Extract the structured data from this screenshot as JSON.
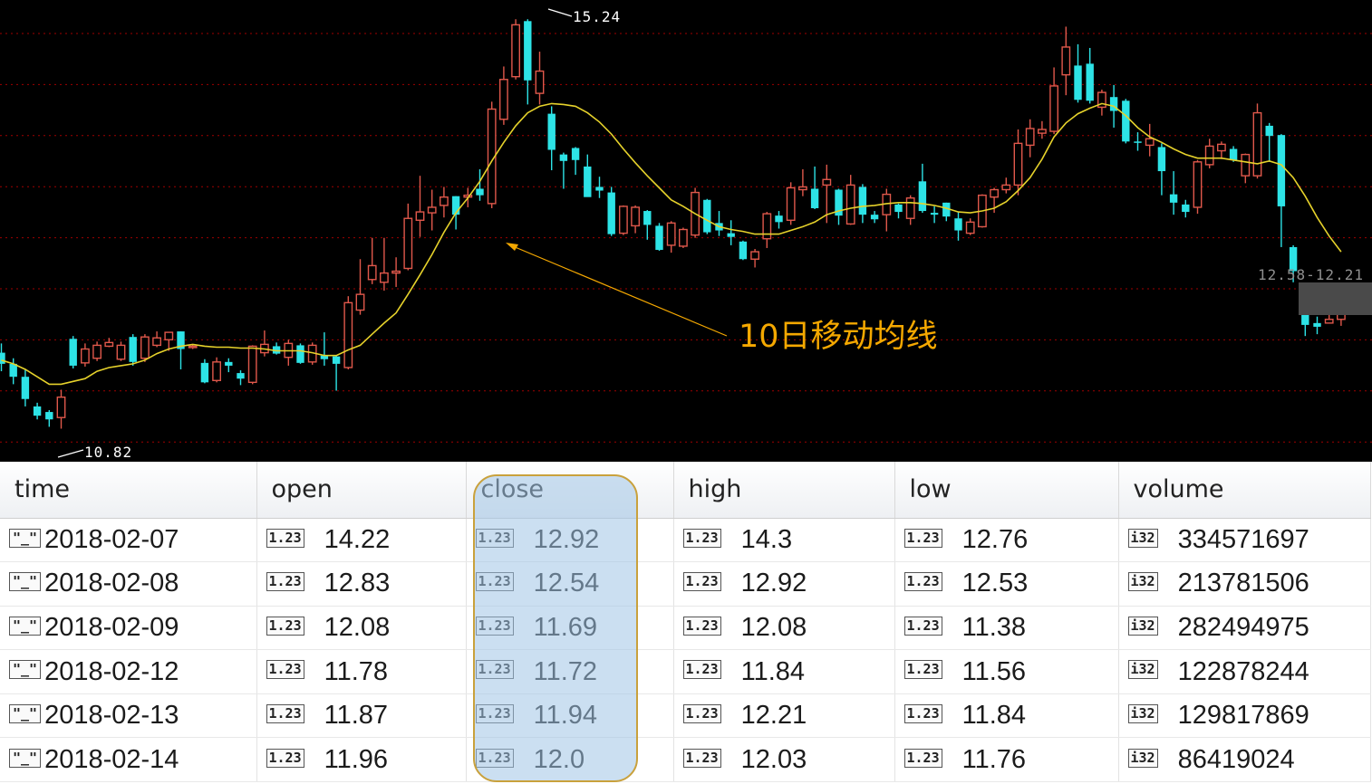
{
  "annotations": {
    "high_label": "15.24",
    "low_label": "10.82",
    "ma_label": "10日移动均线",
    "range_label": "12.58-12.21"
  },
  "colors": {
    "up": "#e0584b",
    "down": "#2de3e6",
    "ma": "#e6d22b",
    "grid": "#a00000",
    "annotation": "#f5a800",
    "highlight_border": "#c9a13c"
  },
  "chart_data": {
    "type": "candlestick",
    "ylim": [
      10.6,
      15.35
    ],
    "ma_period": 10,
    "candles": [
      {
        "o": 11.64,
        "c": 11.52,
        "h": 11.74,
        "l": 11.44
      },
      {
        "o": 11.52,
        "c": 11.38,
        "h": 11.58,
        "l": 11.3
      },
      {
        "o": 11.38,
        "c": 11.14,
        "h": 11.46,
        "l": 11.06
      },
      {
        "o": 11.06,
        "c": 10.96,
        "h": 11.1,
        "l": 10.92
      },
      {
        "o": 11.0,
        "c": 10.92,
        "h": 11.02,
        "l": 10.84
      },
      {
        "o": 10.94,
        "c": 11.16,
        "h": 11.24,
        "l": 10.82
      },
      {
        "o": 11.79,
        "c": 11.5,
        "h": 11.82,
        "l": 11.47
      },
      {
        "o": 11.53,
        "c": 11.68,
        "h": 11.74,
        "l": 11.49
      },
      {
        "o": 11.58,
        "c": 11.72,
        "h": 11.76,
        "l": 11.55
      },
      {
        "o": 11.71,
        "c": 11.75,
        "h": 11.8,
        "l": 11.7
      },
      {
        "o": 11.57,
        "c": 11.72,
        "h": 11.76,
        "l": 11.55
      },
      {
        "o": 11.81,
        "c": 11.54,
        "h": 11.84,
        "l": 11.5
      },
      {
        "o": 11.58,
        "c": 11.81,
        "h": 11.84,
        "l": 11.54
      },
      {
        "o": 11.72,
        "c": 11.8,
        "h": 11.87,
        "l": 11.7
      },
      {
        "o": 11.78,
        "c": 11.86,
        "h": 11.86,
        "l": 11.66
      },
      {
        "o": 11.87,
        "c": 11.68,
        "h": 11.87,
        "l": 11.46
      },
      {
        "o": 11.7,
        "c": 11.71,
        "h": 11.73,
        "l": 11.68
      },
      {
        "o": 11.53,
        "c": 11.32,
        "h": 11.57,
        "l": 11.31
      },
      {
        "o": 11.34,
        "c": 11.54,
        "h": 11.59,
        "l": 11.32
      },
      {
        "o": 11.54,
        "c": 11.5,
        "h": 11.58,
        "l": 11.43
      },
      {
        "o": 11.42,
        "c": 11.36,
        "h": 11.45,
        "l": 11.29
      },
      {
        "o": 11.32,
        "c": 11.71,
        "h": 11.72,
        "l": 11.3
      },
      {
        "o": 11.64,
        "c": 11.73,
        "h": 11.88,
        "l": 11.6
      },
      {
        "o": 11.71,
        "c": 11.63,
        "h": 11.75,
        "l": 11.62
      },
      {
        "o": 11.59,
        "c": 11.74,
        "h": 11.78,
        "l": 11.5
      },
      {
        "o": 11.72,
        "c": 11.53,
        "h": 11.74,
        "l": 11.52
      },
      {
        "o": 11.54,
        "c": 11.72,
        "h": 11.75,
        "l": 11.51
      },
      {
        "o": 11.61,
        "c": 11.57,
        "h": 11.86,
        "l": 11.5
      },
      {
        "o": 11.6,
        "c": 11.52,
        "h": 11.61,
        "l": 11.23
      },
      {
        "o": 11.48,
        "c": 12.18,
        "h": 12.25,
        "l": 11.46
      },
      {
        "o": 12.1,
        "c": 12.27,
        "h": 12.65,
        "l": 12.05
      },
      {
        "o": 12.43,
        "c": 12.58,
        "h": 12.88,
        "l": 12.38
      },
      {
        "o": 12.4,
        "c": 12.5,
        "h": 12.88,
        "l": 12.31
      },
      {
        "o": 12.5,
        "c": 12.52,
        "h": 12.67,
        "l": 12.35
      },
      {
        "o": 12.55,
        "c": 13.09,
        "h": 13.25,
        "l": 12.53
      },
      {
        "o": 13.07,
        "c": 13.16,
        "h": 13.55,
        "l": 12.89
      },
      {
        "o": 13.15,
        "c": 13.21,
        "h": 13.4,
        "l": 12.96
      },
      {
        "o": 13.23,
        "c": 13.32,
        "h": 13.43,
        "l": 13.1
      },
      {
        "o": 13.33,
        "c": 13.13,
        "h": 13.33,
        "l": 12.97
      },
      {
        "o": 13.32,
        "c": 13.34,
        "h": 13.42,
        "l": 13.21
      },
      {
        "o": 13.41,
        "c": 13.34,
        "h": 13.62,
        "l": 13.28
      },
      {
        "o": 13.25,
        "c": 14.27,
        "h": 14.35,
        "l": 13.2
      },
      {
        "o": 14.16,
        "c": 14.59,
        "h": 14.73,
        "l": 14.1
      },
      {
        "o": 14.62,
        "c": 15.18,
        "h": 15.24,
        "l": 14.59
      },
      {
        "o": 15.22,
        "c": 14.58,
        "h": 15.24,
        "l": 14.32
      },
      {
        "o": 14.44,
        "c": 14.68,
        "h": 14.89,
        "l": 14.32
      },
      {
        "o": 14.22,
        "c": 13.83,
        "h": 14.3,
        "l": 13.61
      },
      {
        "o": 13.78,
        "c": 13.71,
        "h": 13.8,
        "l": 13.41
      },
      {
        "o": 13.85,
        "c": 13.72,
        "h": 13.86,
        "l": 13.56
      },
      {
        "o": 13.65,
        "c": 13.32,
        "h": 13.78,
        "l": 13.33
      },
      {
        "o": 13.43,
        "c": 13.39,
        "h": 13.54,
        "l": 13.31
      },
      {
        "o": 13.37,
        "c": 12.92,
        "h": 13.43,
        "l": 12.9
      },
      {
        "o": 12.93,
        "c": 13.22,
        "h": 13.23,
        "l": 12.91
      },
      {
        "o": 13.01,
        "c": 13.21,
        "h": 13.23,
        "l": 12.93
      },
      {
        "o": 13.17,
        "c": 13.02,
        "h": 13.18,
        "l": 12.86
      },
      {
        "o": 13.01,
        "c": 12.75,
        "h": 13.04,
        "l": 12.74
      },
      {
        "o": 12.8,
        "c": 13.04,
        "h": 13.06,
        "l": 12.72
      },
      {
        "o": 12.79,
        "c": 12.97,
        "h": 12.99,
        "l": 12.77
      },
      {
        "o": 12.91,
        "c": 13.37,
        "h": 13.42,
        "l": 12.88
      },
      {
        "o": 13.29,
        "c": 12.94,
        "h": 13.3,
        "l": 12.92
      },
      {
        "o": 13.04,
        "c": 12.96,
        "h": 13.17,
        "l": 12.9
      },
      {
        "o": 12.93,
        "c": 12.89,
        "h": 13.07,
        "l": 12.8
      },
      {
        "o": 12.84,
        "c": 12.65,
        "h": 12.85,
        "l": 12.64
      },
      {
        "o": 12.65,
        "c": 12.73,
        "h": 12.76,
        "l": 12.56
      },
      {
        "o": 12.87,
        "c": 13.14,
        "h": 13.16,
        "l": 12.77
      },
      {
        "o": 13.12,
        "c": 13.05,
        "h": 13.17,
        "l": 12.98
      },
      {
        "o": 13.07,
        "c": 13.42,
        "h": 13.48,
        "l": 13.02
      },
      {
        "o": 13.4,
        "c": 13.43,
        "h": 13.62,
        "l": 13.33
      },
      {
        "o": 13.41,
        "c": 13.2,
        "h": 13.65,
        "l": 13.19
      },
      {
        "o": 13.45,
        "c": 13.51,
        "h": 13.67,
        "l": 13.04
      },
      {
        "o": 13.4,
        "c": 13.12,
        "h": 13.41,
        "l": 13.02
      },
      {
        "o": 13.03,
        "c": 13.45,
        "h": 13.56,
        "l": 13.02
      },
      {
        "o": 13.43,
        "c": 13.13,
        "h": 13.46,
        "l": 13.04
      },
      {
        "o": 13.13,
        "c": 13.08,
        "h": 13.17,
        "l": 13.04
      },
      {
        "o": 13.13,
        "c": 13.35,
        "h": 13.41,
        "l": 12.95
      },
      {
        "o": 13.24,
        "c": 13.16,
        "h": 13.25,
        "l": 13.09
      },
      {
        "o": 13.09,
        "c": 13.31,
        "h": 13.34,
        "l": 13.02
      },
      {
        "o": 13.49,
        "c": 13.17,
        "h": 13.68,
        "l": 13.15
      },
      {
        "o": 13.15,
        "c": 13.13,
        "h": 13.22,
        "l": 13.04
      },
      {
        "o": 13.26,
        "c": 13.11,
        "h": 13.26,
        "l": 13.06
      },
      {
        "o": 13.09,
        "c": 12.96,
        "h": 13.16,
        "l": 12.85
      },
      {
        "o": 12.93,
        "c": 13.05,
        "h": 13.09,
        "l": 12.91
      },
      {
        "o": 13.0,
        "c": 13.34,
        "h": 13.35,
        "l": 12.99
      },
      {
        "o": 13.32,
        "c": 13.4,
        "h": 13.42,
        "l": 13.15
      },
      {
        "o": 13.4,
        "c": 13.45,
        "h": 13.53,
        "l": 13.36
      },
      {
        "o": 13.45,
        "c": 13.9,
        "h": 14.05,
        "l": 13.34
      },
      {
        "o": 13.88,
        "c": 14.06,
        "h": 14.16,
        "l": 13.75
      },
      {
        "o": 14.01,
        "c": 14.05,
        "h": 14.14,
        "l": 13.95
      },
      {
        "o": 14.03,
        "c": 14.52,
        "h": 14.72,
        "l": 14.0
      },
      {
        "o": 14.64,
        "c": 14.94,
        "h": 15.16,
        "l": 14.42
      },
      {
        "o": 14.74,
        "c": 14.37,
        "h": 14.97,
        "l": 14.34
      },
      {
        "o": 14.76,
        "c": 14.36,
        "h": 14.93,
        "l": 14.33
      },
      {
        "o": 14.29,
        "c": 14.45,
        "h": 14.48,
        "l": 14.2
      },
      {
        "o": 14.4,
        "c": 14.25,
        "h": 14.53,
        "l": 14.07
      },
      {
        "o": 14.36,
        "c": 13.92,
        "h": 14.38,
        "l": 13.9
      },
      {
        "o": 13.92,
        "c": 13.91,
        "h": 14.02,
        "l": 13.82
      },
      {
        "o": 13.88,
        "c": 13.95,
        "h": 14.11,
        "l": 13.76
      },
      {
        "o": 13.86,
        "c": 13.6,
        "h": 13.9,
        "l": 13.34
      },
      {
        "o": 13.35,
        "c": 13.26,
        "h": 13.6,
        "l": 13.13
      },
      {
        "o": 13.24,
        "c": 13.16,
        "h": 13.29,
        "l": 13.1
      },
      {
        "o": 13.21,
        "c": 13.7,
        "h": 13.72,
        "l": 13.14
      },
      {
        "o": 13.67,
        "c": 13.87,
        "h": 13.95,
        "l": 13.63
      },
      {
        "o": 13.82,
        "c": 13.89,
        "h": 13.92,
        "l": 13.73
      },
      {
        "o": 13.84,
        "c": 13.72,
        "h": 13.87,
        "l": 13.7
      },
      {
        "o": 13.55,
        "c": 13.78,
        "h": 13.79,
        "l": 13.47
      },
      {
        "o": 13.55,
        "c": 14.23,
        "h": 14.33,
        "l": 13.52
      },
      {
        "o": 14.09,
        "c": 13.98,
        "h": 14.12,
        "l": 13.7
      },
      {
        "o": 13.99,
        "c": 13.22,
        "h": 14.0,
        "l": 12.78
      },
      {
        "o": 12.78,
        "c": 12.52,
        "h": 12.8,
        "l": 12.4
      },
      {
        "o": 12.22,
        "c": 11.94,
        "h": 12.24,
        "l": 11.82
      },
      {
        "o": 11.96,
        "c": 11.92,
        "h": 12.03,
        "l": 11.84
      },
      {
        "o": 11.96,
        "c": 12.0,
        "h": 12.23,
        "l": 11.96
      },
      {
        "o": 12.0,
        "c": 12.07,
        "h": 12.08,
        "l": 11.93
      }
    ],
    "ma": [
      11.56,
      11.52,
      11.46,
      11.38,
      11.3,
      11.3,
      11.33,
      11.36,
      11.44,
      11.48,
      11.5,
      11.52,
      11.56,
      11.63,
      11.68,
      11.71,
      11.73,
      11.71,
      11.7,
      11.7,
      11.69,
      11.69,
      11.68,
      11.66,
      11.66,
      11.66,
      11.64,
      11.61,
      11.61,
      11.67,
      11.72,
      11.84,
      11.96,
      12.07,
      12.27,
      12.48,
      12.7,
      12.94,
      13.15,
      13.31,
      13.49,
      13.71,
      13.91,
      14.09,
      14.23,
      14.3,
      14.33,
      14.32,
      14.3,
      14.23,
      14.13,
      14.0,
      13.84,
      13.69,
      13.55,
      13.42,
      13.29,
      13.22,
      13.14,
      13.07,
      13.0,
      12.97,
      12.95,
      12.92,
      12.92,
      12.92,
      12.96,
      13.0,
      13.05,
      13.13,
      13.17,
      13.2,
      13.22,
      13.23,
      13.25,
      13.26,
      13.26,
      13.25,
      13.23,
      13.2,
      13.16,
      13.15,
      13.17,
      13.2,
      13.27,
      13.39,
      13.53,
      13.73,
      13.97,
      14.12,
      14.22,
      14.28,
      14.33,
      14.3,
      14.2,
      14.07,
      13.97,
      13.91,
      13.84,
      13.78,
      13.74,
      13.74,
      13.74,
      13.72,
      13.7,
      13.68,
      13.71,
      13.67,
      13.53,
      13.33,
      13.1,
      12.9,
      12.73
    ]
  },
  "table": {
    "columns": [
      "time",
      "open",
      "close",
      "high",
      "low",
      "volume"
    ],
    "date_tag": "\"_\"",
    "float_tag": "1.23",
    "int_tag": "i32",
    "rows": [
      {
        "time": "2018-02-07",
        "open": "14.22",
        "close": "12.92",
        "high": "14.3",
        "low": "12.76",
        "volume": "334571697"
      },
      {
        "time": "2018-02-08",
        "open": "12.83",
        "close": "12.54",
        "high": "12.92",
        "low": "12.53",
        "volume": "213781506"
      },
      {
        "time": "2018-02-09",
        "open": "12.08",
        "close": "11.69",
        "high": "12.08",
        "low": "11.38",
        "volume": "282494975"
      },
      {
        "time": "2018-02-12",
        "open": "11.78",
        "close": "11.72",
        "high": "11.84",
        "low": "11.56",
        "volume": "122878244"
      },
      {
        "time": "2018-02-13",
        "open": "11.87",
        "close": "11.94",
        "high": "12.21",
        "low": "11.84",
        "volume": "129817869"
      },
      {
        "time": "2018-02-14",
        "open": "11.96",
        "close": "12.0",
        "high": "12.03",
        "low": "11.76",
        "volume": "86419024"
      }
    ]
  }
}
